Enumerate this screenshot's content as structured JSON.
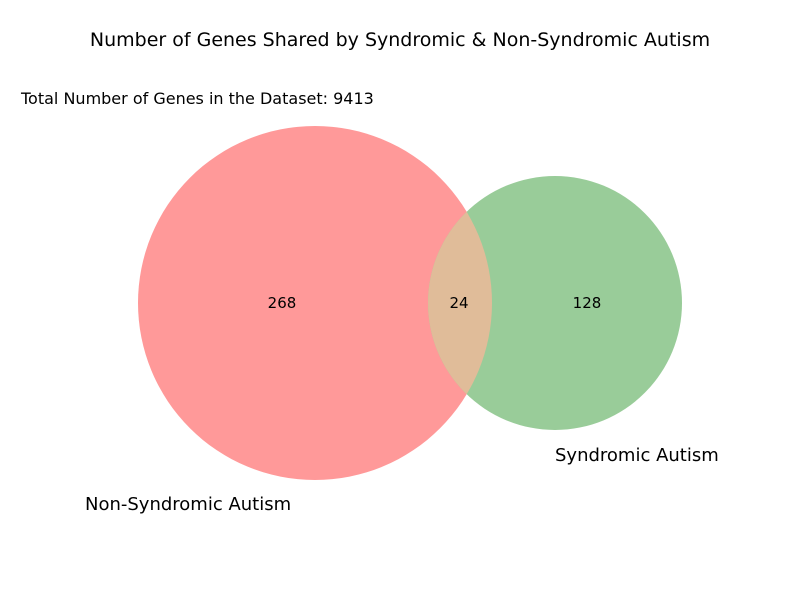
{
  "diagram": {
    "title": "Number of Genes Shared by Syndromic & Non-Syndromic Autism",
    "total_text": "Total Number of Genes in the Dataset: 9413",
    "sets": [
      {
        "name": "Non-Syndromic Autism",
        "only_count": "268",
        "color": "#ff9999"
      },
      {
        "name": "Syndromic Autism",
        "only_count": "128",
        "color": "#99cc99"
      }
    ],
    "intersection": {
      "count": "24",
      "color": "#e0bc99"
    }
  }
}
